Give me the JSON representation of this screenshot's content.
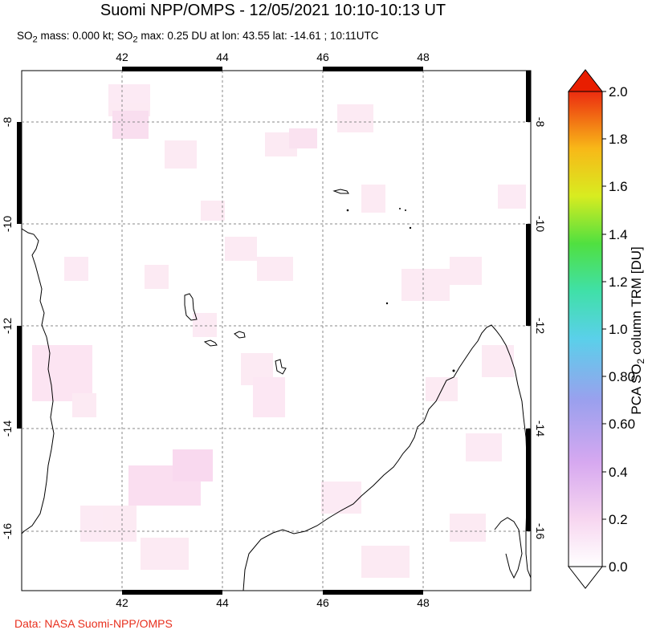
{
  "header": {
    "title": "Suomi NPP/OMPS - 12/05/2021 10:10-10:13 UT",
    "subtitle_parts": {
      "so2_a": "SO",
      "sub_a": "2",
      "mass": " mass: 0.000 kt; SO",
      "sub_b": "2",
      "rest": " max: 0.25 DU at lon: 43.55 lat: -14.61 ; 10:11UTC"
    }
  },
  "map": {
    "lon_ticks": [
      "42",
      "44",
      "46",
      "48"
    ],
    "lat_ticks": [
      "-8",
      "-10",
      "-12",
      "-14",
      "-16"
    ],
    "lon_range": [
      40,
      50
    ],
    "lat_range": [
      -17.2,
      -6.9
    ],
    "grid": "dashed",
    "colors": {
      "coast": "#000000",
      "grid": "#888888",
      "so2_trace": "#fbe3f0"
    }
  },
  "colorbar": {
    "labels": [
      "2.0",
      "1.8",
      "1.6",
      "1.4",
      "1.2",
      "1.0",
      "0.80",
      "0.60",
      "0.4",
      "0.2",
      "0.0"
    ],
    "axis_label": "PCA SO",
    "axis_label_sub": "2",
    "axis_label_rest": " column TRM [DU]",
    "top_arrow_color": "#e81e00",
    "bottom_arrow_color": "#ffffff"
  },
  "footer": {
    "credit": "Data: NASA Suomi-NPP/OMPS"
  }
}
